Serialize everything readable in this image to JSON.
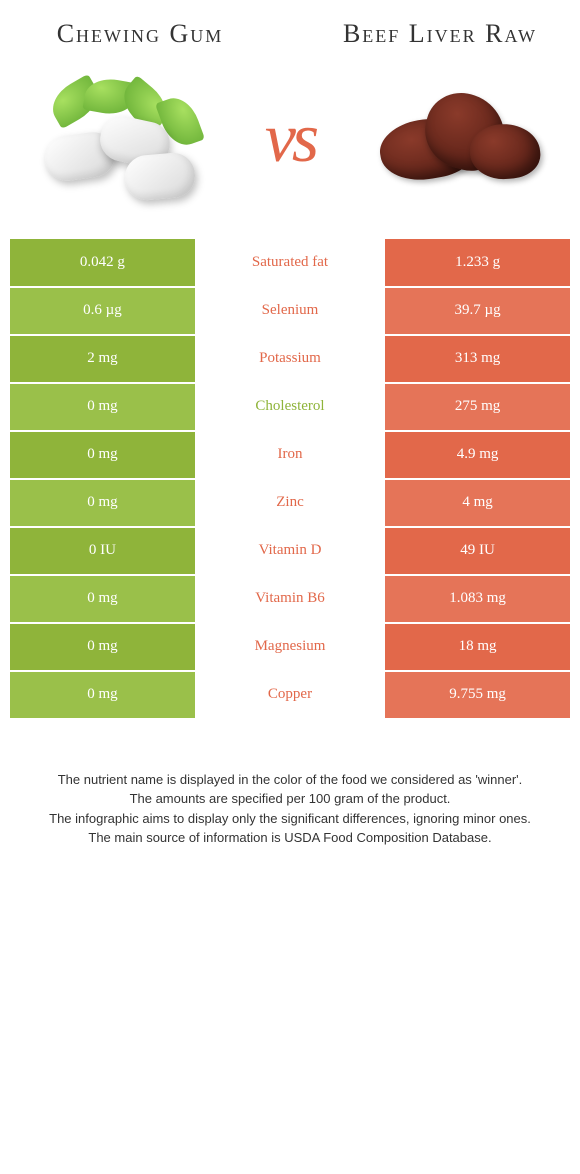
{
  "leftFood": {
    "name": "Chewing Gum",
    "color": "#8fb43a",
    "altColor": "#9ac04a"
  },
  "rightFood": {
    "name": "Beef Liver Raw",
    "color": "#e2684a",
    "altColor": "#e57458"
  },
  "vs": "vs",
  "rows": [
    {
      "left": "0.042 g",
      "label": "Saturated fat",
      "right": "1.233 g",
      "winner": "right"
    },
    {
      "left": "0.6 µg",
      "label": "Selenium",
      "right": "39.7 µg",
      "winner": "right"
    },
    {
      "left": "2 mg",
      "label": "Potassium",
      "right": "313 mg",
      "winner": "right"
    },
    {
      "left": "0 mg",
      "label": "Cholesterol",
      "right": "275 mg",
      "winner": "left"
    },
    {
      "left": "0 mg",
      "label": "Iron",
      "right": "4.9 mg",
      "winner": "right"
    },
    {
      "left": "0 mg",
      "label": "Zinc",
      "right": "4 mg",
      "winner": "right"
    },
    {
      "left": "0 IU",
      "label": "Vitamin D",
      "right": "49 IU",
      "winner": "right"
    },
    {
      "left": "0 mg",
      "label": "Vitamin B6",
      "right": "1.083 mg",
      "winner": "right"
    },
    {
      "left": "0 mg",
      "label": "Magnesium",
      "right": "18 mg",
      "winner": "right"
    },
    {
      "left": "0 mg",
      "label": "Copper",
      "right": "9.755 mg",
      "winner": "right"
    }
  ],
  "footnote": [
    "The nutrient name is displayed in the color of the food we considered as 'winner'.",
    "The amounts are specified per 100 gram of the product.",
    "The infographic aims to display only the significant differences, ignoring minor ones.",
    "The main source of information is USDA Food Composition Database."
  ]
}
